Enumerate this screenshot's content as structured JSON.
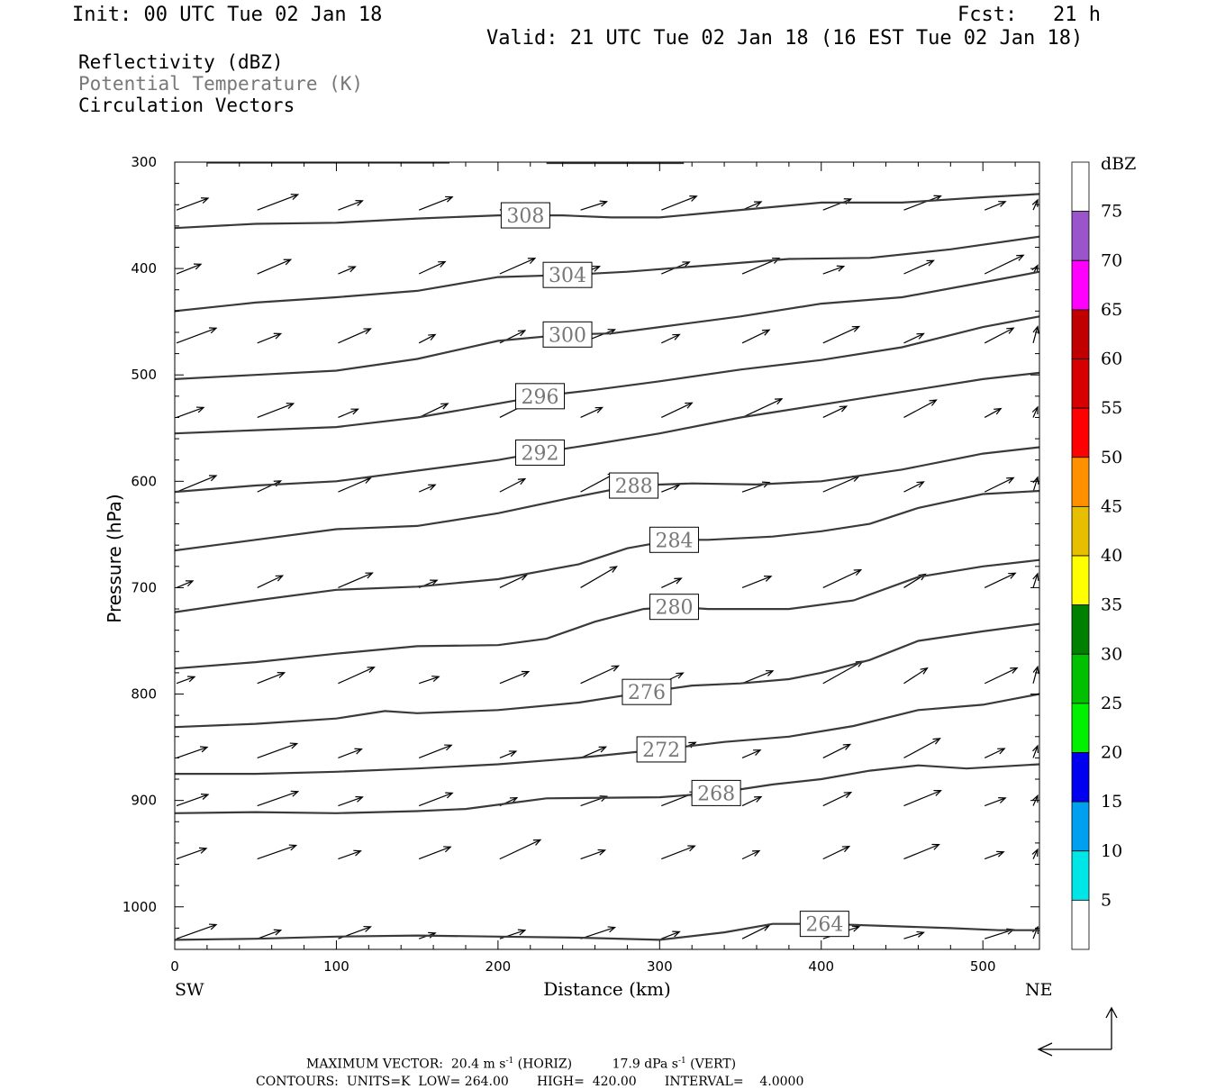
{
  "header": {
    "init": "Init: 00 UTC Tue 02 Jan 18",
    "fcst": "Fcst:   21 h",
    "valid": "Valid: 21 UTC Tue 02 Jan 18 (16 EST Tue 02 Jan 18)"
  },
  "fields": {
    "reflectivity": "Reflectivity (dBZ)",
    "theta": "Potential Temperature (K)",
    "vectors": "Circulation Vectors"
  },
  "colors": {
    "contour": "#3a3a3a",
    "theta_label_text": "#777777"
  },
  "chart_data": {
    "type": "contour",
    "xlabel": "Distance (km)",
    "ylabel": "Pressure (hPa)",
    "xlim": [
      0,
      535
    ],
    "ylim": [
      1040,
      300
    ],
    "xticks": [
      0,
      100,
      200,
      300,
      400,
      500
    ],
    "yticks": [
      300,
      400,
      500,
      600,
      700,
      800,
      900,
      1000
    ],
    "x_endpoints": {
      "left": "SW",
      "right": "NE"
    },
    "contours": [
      {
        "level": "308",
        "label_x": 217,
        "label_p": 350,
        "points": [
          [
            0,
            362
          ],
          [
            50,
            358
          ],
          [
            100,
            357
          ],
          [
            150,
            353
          ],
          [
            200,
            350
          ],
          [
            240,
            350
          ],
          [
            270,
            352
          ],
          [
            300,
            352
          ],
          [
            350,
            345
          ],
          [
            400,
            338
          ],
          [
            450,
            338
          ],
          [
            500,
            333
          ],
          [
            535,
            330
          ]
        ]
      },
      {
        "level": "304",
        "label_x": 243,
        "label_p": 406,
        "points": [
          [
            0,
            440
          ],
          [
            50,
            432
          ],
          [
            100,
            427
          ],
          [
            150,
            421
          ],
          [
            200,
            408
          ],
          [
            243,
            406
          ],
          [
            280,
            403
          ],
          [
            330,
            397
          ],
          [
            380,
            391
          ],
          [
            430,
            390
          ],
          [
            480,
            382
          ],
          [
            535,
            370
          ]
        ]
      },
      {
        "level": "300",
        "label_x": 243,
        "label_p": 462,
        "points": [
          [
            0,
            504
          ],
          [
            50,
            500
          ],
          [
            100,
            496
          ],
          [
            150,
            485
          ],
          [
            200,
            468
          ],
          [
            243,
            462
          ],
          [
            270,
            461
          ],
          [
            300,
            455
          ],
          [
            350,
            445
          ],
          [
            400,
            433
          ],
          [
            450,
            427
          ],
          [
            500,
            413
          ],
          [
            535,
            403
          ]
        ]
      },
      {
        "level": "296",
        "label_x": 226,
        "label_p": 520,
        "points": [
          [
            0,
            555
          ],
          [
            50,
            552
          ],
          [
            100,
            549
          ],
          [
            150,
            540
          ],
          [
            200,
            527
          ],
          [
            226,
            520
          ],
          [
            260,
            514
          ],
          [
            300,
            506
          ],
          [
            350,
            495
          ],
          [
            400,
            486
          ],
          [
            450,
            474
          ],
          [
            500,
            455
          ],
          [
            535,
            445
          ]
        ]
      },
      {
        "level": "292",
        "label_x": 226,
        "label_p": 573,
        "points": [
          [
            0,
            610
          ],
          [
            50,
            604
          ],
          [
            100,
            600
          ],
          [
            150,
            590
          ],
          [
            200,
            580
          ],
          [
            226,
            573
          ],
          [
            260,
            565
          ],
          [
            300,
            555
          ],
          [
            350,
            540
          ],
          [
            400,
            528
          ],
          [
            450,
            516
          ],
          [
            500,
            504
          ],
          [
            535,
            498
          ]
        ]
      },
      {
        "level": "288",
        "label_x": 284,
        "label_p": 604,
        "points": [
          [
            0,
            665
          ],
          [
            50,
            655
          ],
          [
            100,
            645
          ],
          [
            150,
            642
          ],
          [
            200,
            630
          ],
          [
            250,
            614
          ],
          [
            284,
            604
          ],
          [
            320,
            602
          ],
          [
            360,
            603
          ],
          [
            400,
            600
          ],
          [
            450,
            589
          ],
          [
            500,
            574
          ],
          [
            535,
            568
          ]
        ]
      },
      {
        "level": "284",
        "label_x": 309,
        "label_p": 655,
        "points": [
          [
            0,
            723
          ],
          [
            50,
            712
          ],
          [
            100,
            702
          ],
          [
            150,
            699
          ],
          [
            200,
            692
          ],
          [
            250,
            678
          ],
          [
            280,
            663
          ],
          [
            309,
            655
          ],
          [
            330,
            655
          ],
          [
            370,
            652
          ],
          [
            400,
            647
          ],
          [
            430,
            640
          ],
          [
            460,
            625
          ],
          [
            500,
            612
          ],
          [
            535,
            609
          ]
        ]
      },
      {
        "level": "280",
        "label_x": 309,
        "label_p": 718,
        "points": [
          [
            0,
            776
          ],
          [
            50,
            770
          ],
          [
            100,
            762
          ],
          [
            150,
            755
          ],
          [
            200,
            754
          ],
          [
            230,
            748
          ],
          [
            260,
            732
          ],
          [
            290,
            720
          ],
          [
            309,
            718
          ],
          [
            330,
            720
          ],
          [
            380,
            720
          ],
          [
            420,
            712
          ],
          [
            460,
            690
          ],
          [
            500,
            680
          ],
          [
            535,
            674
          ]
        ]
      },
      {
        "level": "276",
        "label_x": 292,
        "label_p": 798,
        "points": [
          [
            0,
            831
          ],
          [
            50,
            828
          ],
          [
            100,
            823
          ],
          [
            130,
            816
          ],
          [
            150,
            818
          ],
          [
            200,
            815
          ],
          [
            250,
            808
          ],
          [
            292,
            798
          ],
          [
            320,
            792
          ],
          [
            350,
            790
          ],
          [
            380,
            786
          ],
          [
            400,
            780
          ],
          [
            430,
            768
          ],
          [
            460,
            750
          ],
          [
            500,
            741
          ],
          [
            535,
            734
          ]
        ]
      },
      {
        "level": "272",
        "label_x": 301,
        "label_p": 852,
        "points": [
          [
            0,
            875
          ],
          [
            50,
            875
          ],
          [
            100,
            873
          ],
          [
            150,
            870
          ],
          [
            200,
            866
          ],
          [
            250,
            860
          ],
          [
            301,
            852
          ],
          [
            340,
            845
          ],
          [
            380,
            840
          ],
          [
            420,
            830
          ],
          [
            460,
            815
          ],
          [
            500,
            810
          ],
          [
            535,
            800
          ]
        ]
      },
      {
        "level": "268",
        "label_x": 335,
        "label_p": 893,
        "points": [
          [
            0,
            912
          ],
          [
            50,
            911
          ],
          [
            100,
            912
          ],
          [
            150,
            910
          ],
          [
            180,
            908
          ],
          [
            230,
            898
          ],
          [
            300,
            897
          ],
          [
            335,
            893
          ],
          [
            370,
            885
          ],
          [
            400,
            880
          ],
          [
            430,
            872
          ],
          [
            460,
            867
          ],
          [
            490,
            870
          ],
          [
            535,
            866
          ]
        ]
      },
      {
        "level": "264",
        "label_x": 402,
        "label_p": 1016,
        "points": [
          [
            0,
            1031
          ],
          [
            50,
            1030
          ],
          [
            100,
            1028
          ],
          [
            150,
            1027
          ],
          [
            200,
            1028
          ],
          [
            250,
            1029
          ],
          [
            300,
            1031
          ],
          [
            340,
            1024
          ],
          [
            370,
            1016
          ],
          [
            402,
            1016
          ],
          [
            440,
            1018
          ],
          [
            480,
            1020
          ],
          [
            510,
            1022
          ],
          [
            535,
            1022
          ]
        ]
      }
    ],
    "colorbar": {
      "label": "dBZ",
      "levels": [
        "5",
        "10",
        "15",
        "20",
        "25",
        "30",
        "35",
        "40",
        "45",
        "50",
        "55",
        "60",
        "65",
        "70",
        "75"
      ],
      "colors": [
        "#ffffff",
        "#00e6e6",
        "#00a0f0",
        "#0000f0",
        "#00f000",
        "#00c000",
        "#008000",
        "#ffff00",
        "#e6bf00",
        "#ff9100",
        "#ff0000",
        "#d70000",
        "#c00000",
        "#ff00ff",
        "#9955c9",
        "#ffffff"
      ]
    },
    "vectors_note": "circulation vectors (horizontal + vertical motion)"
  },
  "footer": {
    "max_vector_label": "MAXIMUM VECTOR:",
    "horiz_value": "20.4 m s",
    "horiz_suffix": " (HORIZ)",
    "vert_value": "17.9 dPa s",
    "vert_suffix": " (VERT)",
    "superscript": "-1",
    "contours_label": "CONTOURS:",
    "units": "UNITS=K",
    "low_label": "LOW=",
    "low_value": "264.00",
    "high_label": "HIGH=",
    "high_value": "420.00",
    "interval_label": "INTERVAL=",
    "interval_value": "4.0000"
  }
}
